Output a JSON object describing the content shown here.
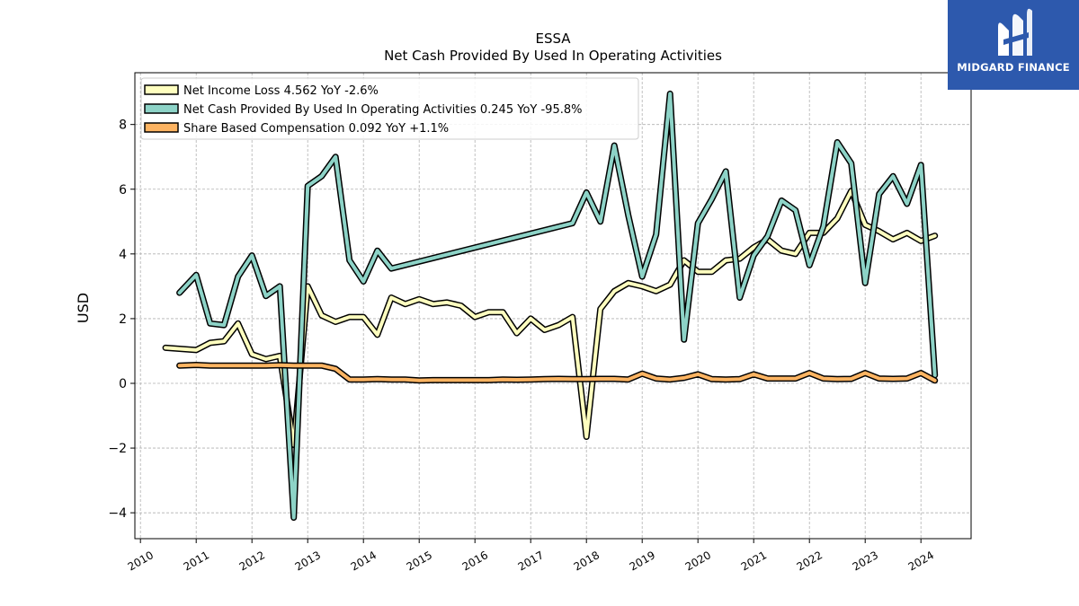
{
  "brand": {
    "name": "MIDGARD FINANCE",
    "bg_color": "#2d59ad"
  },
  "chart_data": {
    "type": "line",
    "title": "ESSA",
    "subtitle": "Net Cash Provided By Used In Operating Activities",
    "ylabel": "USD",
    "xlabel": "",
    "xlim": [
      2009.9,
      2024.9
    ],
    "ylim": [
      -4.8,
      9.6
    ],
    "xticks": [
      2010,
      2011,
      2012,
      2013,
      2014,
      2015,
      2016,
      2017,
      2018,
      2019,
      2020,
      2021,
      2022,
      2023,
      2024
    ],
    "xtick_labels": [
      "2010",
      "2011",
      "2012",
      "2013",
      "2014",
      "2015",
      "2016",
      "2017",
      "2018",
      "2019",
      "2020",
      "2021",
      "2022",
      "2023",
      "2024"
    ],
    "yticks": [
      -4,
      -2,
      0,
      2,
      4,
      6,
      8
    ],
    "ytick_labels": [
      "−4",
      "−2",
      "0",
      "2",
      "4",
      "6",
      "8"
    ],
    "grid": true,
    "legend_position": "top-left",
    "series": [
      {
        "name": "Net Income Loss  4.562 YoY -2.6%",
        "color": "#ffffbf",
        "points": [
          [
            2010.45,
            1.1
          ],
          [
            2011.0,
            1.03
          ],
          [
            2011.25,
            1.25
          ],
          [
            2011.5,
            1.3
          ],
          [
            2011.75,
            1.85
          ],
          [
            2012.0,
            0.9
          ],
          [
            2012.25,
            0.75
          ],
          [
            2012.5,
            0.85
          ],
          [
            2012.75,
            -1.9
          ],
          [
            2013.0,
            3.0
          ],
          [
            2013.25,
            2.1
          ],
          [
            2013.5,
            1.9
          ],
          [
            2013.75,
            2.05
          ],
          [
            2014.0,
            2.05
          ],
          [
            2014.25,
            1.5
          ],
          [
            2014.5,
            2.65
          ],
          [
            2014.75,
            2.45
          ],
          [
            2015.0,
            2.6
          ],
          [
            2015.25,
            2.45
          ],
          [
            2015.5,
            2.5
          ],
          [
            2015.75,
            2.4
          ],
          [
            2016.0,
            2.05
          ],
          [
            2016.25,
            2.2
          ],
          [
            2016.5,
            2.2
          ],
          [
            2016.75,
            1.55
          ],
          [
            2017.0,
            2.0
          ],
          [
            2017.25,
            1.65
          ],
          [
            2017.5,
            1.8
          ],
          [
            2017.75,
            2.05
          ],
          [
            2018.0,
            -1.65
          ],
          [
            2018.25,
            2.3
          ],
          [
            2018.5,
            2.85
          ],
          [
            2018.75,
            3.1
          ],
          [
            2019.0,
            3.0
          ],
          [
            2019.25,
            2.85
          ],
          [
            2019.5,
            3.05
          ],
          [
            2019.75,
            3.8
          ],
          [
            2020.0,
            3.45
          ],
          [
            2020.25,
            3.45
          ],
          [
            2020.5,
            3.8
          ],
          [
            2020.75,
            3.85
          ],
          [
            2021.0,
            4.2
          ],
          [
            2021.25,
            4.45
          ],
          [
            2021.5,
            4.1
          ],
          [
            2021.75,
            4.0
          ],
          [
            2022.0,
            4.65
          ],
          [
            2022.25,
            4.65
          ],
          [
            2022.5,
            5.1
          ],
          [
            2022.75,
            5.95
          ],
          [
            2023.0,
            4.9
          ],
          [
            2023.25,
            4.7
          ],
          [
            2023.5,
            4.45
          ],
          [
            2023.75,
            4.65
          ],
          [
            2024.0,
            4.4
          ],
          [
            2024.25,
            4.56
          ]
        ]
      },
      {
        "name": "Net Cash Provided By Used In Operating Activities  0.245 YoY -95.8%",
        "color": "#8dd3c7",
        "points": [
          [
            2010.7,
            2.8
          ],
          [
            2011.0,
            3.35
          ],
          [
            2011.25,
            1.85
          ],
          [
            2011.5,
            1.8
          ],
          [
            2011.75,
            3.3
          ],
          [
            2012.0,
            3.95
          ],
          [
            2012.25,
            2.7
          ],
          [
            2012.5,
            3.0
          ],
          [
            2012.75,
            -4.15
          ],
          [
            2013.0,
            6.1
          ],
          [
            2013.25,
            6.4
          ],
          [
            2013.5,
            7.0
          ],
          [
            2013.75,
            3.8
          ],
          [
            2014.0,
            3.15
          ],
          [
            2014.25,
            4.1
          ],
          [
            2014.5,
            3.55
          ],
          [
            2017.75,
            4.95
          ],
          [
            2018.0,
            5.9
          ],
          [
            2018.25,
            5.0
          ],
          [
            2018.5,
            7.35
          ],
          [
            2018.75,
            5.2
          ],
          [
            2019.0,
            3.3
          ],
          [
            2019.25,
            4.6
          ],
          [
            2019.5,
            8.95
          ],
          [
            2019.75,
            1.35
          ],
          [
            2020.0,
            4.95
          ],
          [
            2020.25,
            5.7
          ],
          [
            2020.5,
            6.55
          ],
          [
            2020.75,
            2.65
          ],
          [
            2021.0,
            3.95
          ],
          [
            2021.25,
            4.55
          ],
          [
            2021.5,
            5.65
          ],
          [
            2021.75,
            5.35
          ],
          [
            2022.0,
            3.65
          ],
          [
            2022.25,
            4.85
          ],
          [
            2022.5,
            7.45
          ],
          [
            2022.75,
            6.8
          ],
          [
            2023.0,
            3.1
          ],
          [
            2023.25,
            5.85
          ],
          [
            2023.5,
            6.4
          ],
          [
            2023.75,
            5.55
          ],
          [
            2024.0,
            6.75
          ],
          [
            2024.25,
            0.25
          ]
        ]
      },
      {
        "name": "Share Based Compensation  0.092 YoY +1.1%",
        "color": "#fdb462",
        "points": [
          [
            2010.7,
            0.55
          ],
          [
            2011.0,
            0.57
          ],
          [
            2011.25,
            0.55
          ],
          [
            2011.5,
            0.55
          ],
          [
            2011.75,
            0.55
          ],
          [
            2012.0,
            0.55
          ],
          [
            2012.25,
            0.55
          ],
          [
            2012.5,
            0.56
          ],
          [
            2012.75,
            0.55
          ],
          [
            2013.0,
            0.55
          ],
          [
            2013.25,
            0.55
          ],
          [
            2013.5,
            0.45
          ],
          [
            2013.75,
            0.12
          ],
          [
            2014.0,
            0.12
          ],
          [
            2014.25,
            0.13
          ],
          [
            2014.5,
            0.12
          ],
          [
            2014.75,
            0.12
          ],
          [
            2015.0,
            0.09
          ],
          [
            2015.25,
            0.1
          ],
          [
            2015.5,
            0.1
          ],
          [
            2015.75,
            0.1
          ],
          [
            2016.0,
            0.1
          ],
          [
            2016.25,
            0.1
          ],
          [
            2016.5,
            0.12
          ],
          [
            2016.75,
            0.11
          ],
          [
            2017.0,
            0.12
          ],
          [
            2017.25,
            0.13
          ],
          [
            2017.5,
            0.14
          ],
          [
            2017.75,
            0.13
          ],
          [
            2018.0,
            0.13
          ],
          [
            2018.25,
            0.14
          ],
          [
            2018.5,
            0.14
          ],
          [
            2018.75,
            0.12
          ],
          [
            2019.0,
            0.3
          ],
          [
            2019.25,
            0.15
          ],
          [
            2019.5,
            0.12
          ],
          [
            2019.75,
            0.17
          ],
          [
            2020.0,
            0.28
          ],
          [
            2020.25,
            0.13
          ],
          [
            2020.5,
            0.12
          ],
          [
            2020.75,
            0.13
          ],
          [
            2021.0,
            0.28
          ],
          [
            2021.25,
            0.15
          ],
          [
            2021.5,
            0.15
          ],
          [
            2021.75,
            0.15
          ],
          [
            2022.0,
            0.32
          ],
          [
            2022.25,
            0.15
          ],
          [
            2022.5,
            0.13
          ],
          [
            2022.75,
            0.14
          ],
          [
            2023.0,
            0.32
          ],
          [
            2023.25,
            0.15
          ],
          [
            2023.5,
            0.14
          ],
          [
            2023.75,
            0.15
          ],
          [
            2024.0,
            0.32
          ],
          [
            2024.25,
            0.09
          ]
        ]
      }
    ]
  }
}
